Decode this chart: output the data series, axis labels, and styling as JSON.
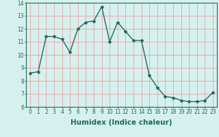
{
  "x": [
    0,
    1,
    2,
    3,
    4,
    5,
    6,
    7,
    8,
    9,
    10,
    11,
    12,
    13,
    14,
    15,
    16,
    17,
    18,
    19,
    20,
    21,
    22,
    23
  ],
  "y": [
    8.6,
    8.7,
    11.4,
    11.4,
    11.2,
    10.2,
    12.0,
    12.5,
    12.6,
    13.7,
    11.0,
    12.5,
    11.8,
    11.1,
    11.1,
    8.4,
    7.5,
    6.8,
    6.7,
    6.5,
    6.4,
    6.4,
    6.5,
    7.1
  ],
  "line_color": "#1a6b5a",
  "marker": "*",
  "marker_size": 3,
  "bg_color": "#d6f0ee",
  "grid_color": "#e8a0a0",
  "xlabel": "Humidex (Indice chaleur)",
  "ylim": [
    6,
    14
  ],
  "xlim": [
    -0.5,
    23.5
  ],
  "yticks": [
    6,
    7,
    8,
    9,
    10,
    11,
    12,
    13,
    14
  ],
  "xticks": [
    0,
    1,
    2,
    3,
    4,
    5,
    6,
    7,
    8,
    9,
    10,
    11,
    12,
    13,
    14,
    15,
    16,
    17,
    18,
    19,
    20,
    21,
    22,
    23
  ],
  "tick_label_fontsize": 5.5,
  "xlabel_fontsize": 7.5,
  "line_width": 1.0
}
